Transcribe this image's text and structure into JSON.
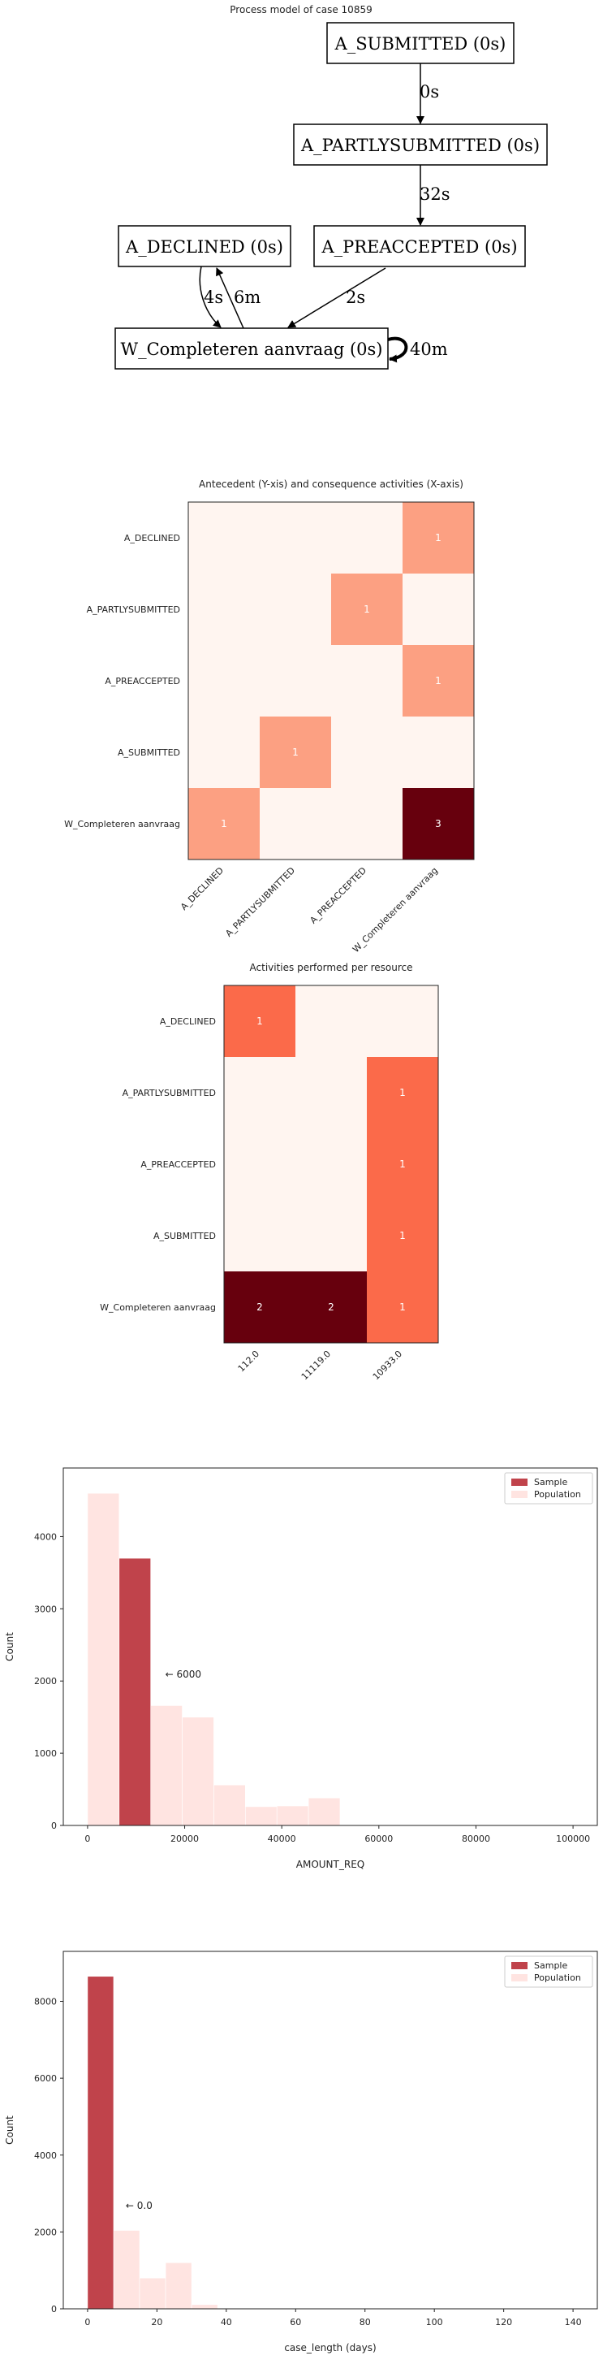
{
  "process_model": {
    "title": "Process model of case 10859",
    "nodes": [
      {
        "id": "submitted",
        "label": "A_SUBMITTED (0s)"
      },
      {
        "id": "partly",
        "label": "A_PARTLYSUBMITTED (0s)"
      },
      {
        "id": "declined",
        "label": "A_DECLINED (0s)"
      },
      {
        "id": "preaccepted",
        "label": "A_PREACCEPTED (0s)"
      },
      {
        "id": "completeren",
        "label": "W_Completeren aanvraag (0s)"
      }
    ],
    "edges": [
      {
        "from": "submitted",
        "to": "partly",
        "label": "0s"
      },
      {
        "from": "partly",
        "to": "preaccepted",
        "label": "32s"
      },
      {
        "from": "declined",
        "to": "completeren",
        "label": "4s"
      },
      {
        "from": "completeren",
        "to": "declined",
        "label": "6m"
      },
      {
        "from": "preaccepted",
        "to": "completeren",
        "label": "2s"
      },
      {
        "from": "completeren",
        "to": "completeren",
        "label": "40m"
      }
    ]
  },
  "chart_data": [
    {
      "type": "heatmap",
      "title": "Antecedent (Y-xis) and consequence activities (X-axis)",
      "rows": [
        "A_DECLINED",
        "A_PARTLYSUBMITTED",
        "A_PREACCEPTED",
        "A_SUBMITTED",
        "W_Completeren aanvraag"
      ],
      "columns": [
        "A_DECLINED",
        "A_PARTLYSUBMITTED",
        "A_PREACCEPTED",
        "W_Completeren aanvraag"
      ],
      "values": [
        [
          0,
          0,
          0,
          1
        ],
        [
          0,
          0,
          1,
          0
        ],
        [
          0,
          0,
          0,
          1
        ],
        [
          0,
          1,
          0,
          0
        ],
        [
          1,
          0,
          0,
          3
        ]
      ],
      "vmax": 3,
      "colormap": "Reds"
    },
    {
      "type": "heatmap",
      "title": "Activities performed per resource",
      "rows": [
        "A_DECLINED",
        "A_PARTLYSUBMITTED",
        "A_PREACCEPTED",
        "A_SUBMITTED",
        "W_Completeren aanvraag"
      ],
      "columns": [
        "112.0",
        "11119.0",
        "10933.0"
      ],
      "values": [
        [
          1,
          0,
          0
        ],
        [
          0,
          0,
          1
        ],
        [
          0,
          0,
          1
        ],
        [
          0,
          0,
          1
        ],
        [
          2,
          2,
          1
        ]
      ],
      "vmax": 2,
      "colormap": "Reds"
    },
    {
      "type": "bar",
      "xlabel": "AMOUNT_REQ",
      "ylabel": "Count",
      "xlim": [
        -5000,
        105000
      ],
      "ylim": [
        0,
        4950
      ],
      "xticks": [
        "0",
        "20000",
        "40000",
        "60000",
        "80000",
        "100000"
      ],
      "xtick_values": [
        0,
        20000,
        40000,
        60000,
        80000,
        100000
      ],
      "yticks": [
        "0",
        "1000",
        "2000",
        "3000",
        "4000"
      ],
      "ytick_values": [
        0,
        1000,
        2000,
        3000,
        4000
      ],
      "legend": [
        "Sample",
        "Population"
      ],
      "legend_position": "top-right",
      "annotation": {
        "text": "← 6000",
        "x": 16000,
        "y": 2050
      },
      "series": [
        {
          "name": "Population",
          "color": "#ffe4e1",
          "bins": [
            {
              "x0": 0,
              "x1": 6500,
              "value": 4600
            },
            {
              "x0": 6500,
              "x1": 13000,
              "value": 3700
            },
            {
              "x0": 13000,
              "x1": 19500,
              "value": 1660
            },
            {
              "x0": 19500,
              "x1": 26000,
              "value": 1500
            },
            {
              "x0": 26000,
              "x1": 32500,
              "value": 560
            },
            {
              "x0": 32500,
              "x1": 39000,
              "value": 260
            },
            {
              "x0": 39000,
              "x1": 45500,
              "value": 270
            },
            {
              "x0": 45500,
              "x1": 52000,
              "value": 380
            }
          ]
        },
        {
          "name": "Sample",
          "color": "#c0434b",
          "bins": [
            {
              "x0": 6500,
              "x1": 13000,
              "value": 3700
            }
          ]
        }
      ]
    },
    {
      "type": "bar",
      "xlabel": "case_length (days)",
      "ylabel": "Count",
      "xlim": [
        -7,
        147
      ],
      "ylim": [
        0,
        9300
      ],
      "xticks": [
        "0",
        "20",
        "40",
        "60",
        "80",
        "100",
        "120",
        "140"
      ],
      "xtick_values": [
        0,
        20,
        40,
        60,
        80,
        100,
        120,
        140
      ],
      "yticks": [
        "0",
        "2000",
        "4000",
        "6000",
        "8000"
      ],
      "ytick_values": [
        0,
        2000,
        4000,
        6000,
        8000
      ],
      "legend": [
        "Sample",
        "Population"
      ],
      "legend_position": "top-right",
      "annotation": {
        "text": "← 0.0",
        "x": 11,
        "y": 2600
      },
      "series": [
        {
          "name": "Population",
          "color": "#ffe4e1",
          "bins": [
            {
              "x0": 0,
              "x1": 7.5,
              "value": 8650
            },
            {
              "x0": 7.5,
              "x1": 15,
              "value": 2040
            },
            {
              "x0": 15,
              "x1": 22.5,
              "value": 800
            },
            {
              "x0": 22.5,
              "x1": 30,
              "value": 1200
            },
            {
              "x0": 30,
              "x1": 37.5,
              "value": 110
            }
          ]
        },
        {
          "name": "Sample",
          "color": "#c0434b",
          "bins": [
            {
              "x0": 0,
              "x1": 7.5,
              "value": 8650
            }
          ]
        }
      ]
    }
  ]
}
